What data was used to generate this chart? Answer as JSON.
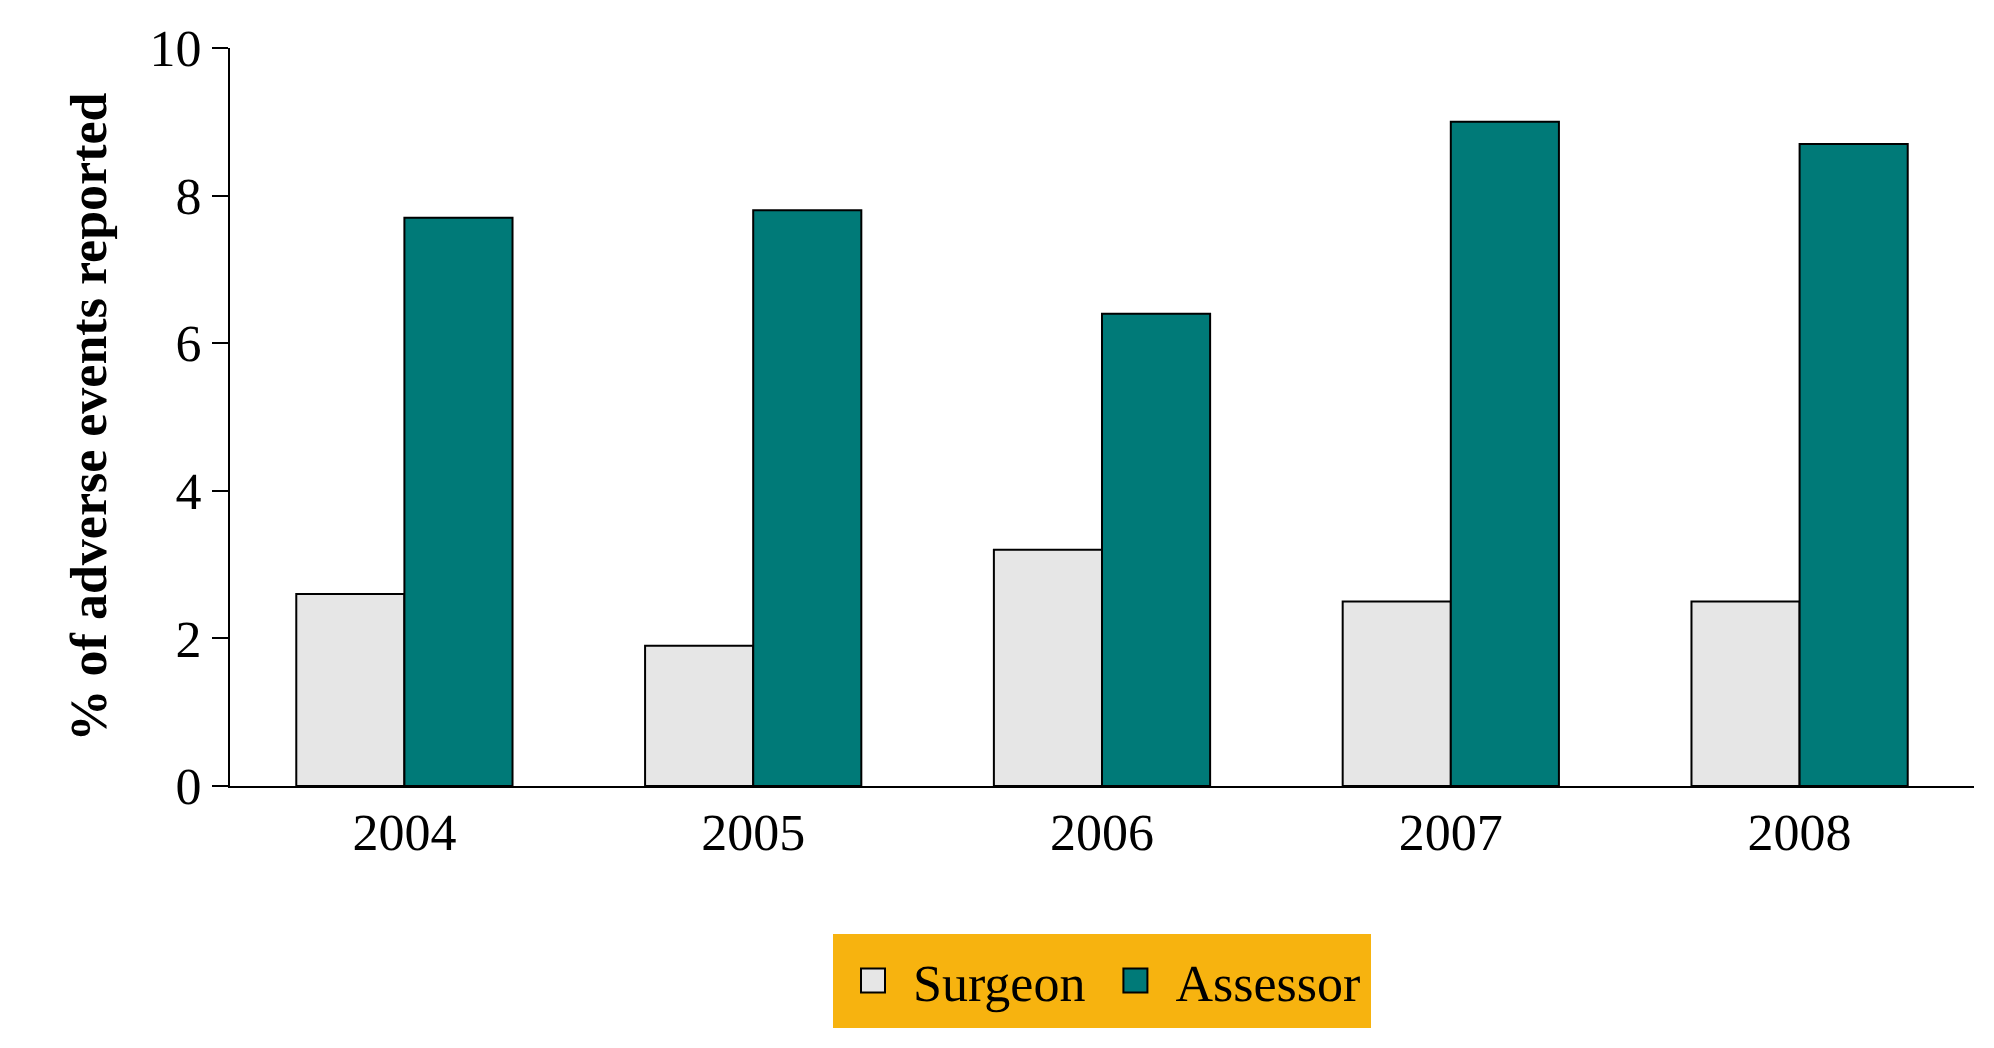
{
  "chart_data": {
    "type": "bar",
    "ylabel": "% of adverse events reported",
    "categories": [
      "2004",
      "2005",
      "2006",
      "2007",
      "2008"
    ],
    "series": [
      {
        "name": "Surgeon",
        "color": "#e6e6e6",
        "values": [
          2.6,
          1.9,
          3.2,
          2.5,
          2.5
        ]
      },
      {
        "name": "Assessor",
        "color": "#007a78",
        "values": [
          7.7,
          7.8,
          6.4,
          9.0,
          8.7
        ]
      }
    ],
    "ylim": [
      0,
      10
    ],
    "yticks": [
      0,
      2,
      4,
      6,
      8,
      10
    ],
    "grid": false,
    "legend": "bottom"
  }
}
